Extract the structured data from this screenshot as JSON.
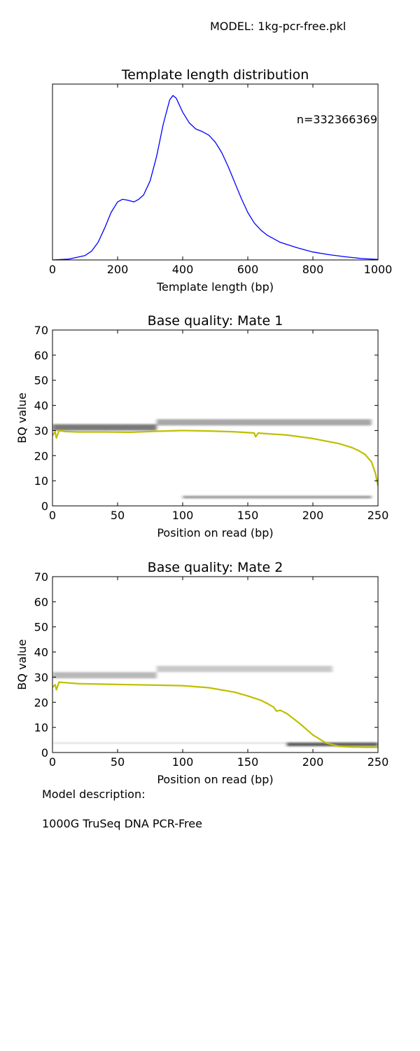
{
  "header": {
    "model_label": "MODEL: 1kg-pcr-free.pkl"
  },
  "footer": {
    "description_label": "Model description:",
    "description_text": "1000G TruSeq DNA PCR-Free"
  },
  "colors": {
    "tlen_line": "#0000ff",
    "mean_line": "#bfbf00",
    "heat": "#000000"
  },
  "chart_data": [
    {
      "type": "line",
      "title": "Template length distribution",
      "xlabel": "Template length (bp)",
      "ylabel": "",
      "annotation": "n=332366369",
      "xlim": [
        0,
        1000
      ],
      "ylim": [
        0,
        1
      ],
      "xticks": [
        0,
        200,
        400,
        600,
        800,
        1000
      ],
      "yticks": [],
      "series": [
        {
          "x": [
            0,
            50,
            100,
            120,
            140,
            160,
            180,
            200,
            215,
            230,
            250,
            265,
            280,
            300,
            320,
            340,
            360,
            370,
            380,
            400,
            420,
            440,
            460,
            480,
            500,
            520,
            540,
            560,
            580,
            600,
            620,
            640,
            660,
            700,
            750,
            800,
            850,
            900,
            950,
            1000
          ],
          "y": [
            0.0,
            0.005,
            0.025,
            0.05,
            0.1,
            0.18,
            0.27,
            0.33,
            0.345,
            0.34,
            0.33,
            0.345,
            0.37,
            0.45,
            0.59,
            0.77,
            0.91,
            0.935,
            0.92,
            0.84,
            0.78,
            0.745,
            0.73,
            0.71,
            0.67,
            0.61,
            0.53,
            0.44,
            0.35,
            0.27,
            0.21,
            0.17,
            0.14,
            0.1,
            0.07,
            0.045,
            0.03,
            0.018,
            0.008,
            0.003
          ]
        }
      ]
    },
    {
      "type": "heatmap",
      "title": "Base quality: Mate 1",
      "xlabel": "Position on read (bp)",
      "ylabel": "BQ value",
      "xlim": [
        0,
        250
      ],
      "ylim": [
        0,
        70
      ],
      "xticks": [
        0,
        50,
        100,
        150,
        200,
        250
      ],
      "yticks": [
        0,
        10,
        20,
        30,
        40,
        50,
        60,
        70
      ],
      "bands": [
        {
          "x_start": 0,
          "x_end": 80,
          "q_low": 30,
          "q_high": 32.5,
          "density": 0.75
        },
        {
          "x_start": 80,
          "x_end": 245,
          "q_low": 32,
          "q_high": 34.5,
          "density": 0.5
        },
        {
          "x_start": 100,
          "x_end": 245,
          "q_low": 3,
          "q_high": 4,
          "density": 0.6
        }
      ],
      "series": [
        {
          "x": [
            0,
            2,
            3,
            5,
            10,
            20,
            40,
            60,
            80,
            100,
            120,
            140,
            155,
            156,
            158,
            160,
            180,
            200,
            220,
            230,
            235,
            240,
            245,
            248,
            250
          ],
          "y": [
            28,
            29.5,
            27,
            30,
            29.6,
            29.4,
            29.4,
            29.3,
            29.7,
            30.0,
            29.8,
            29.5,
            29.0,
            27.5,
            29.0,
            28.9,
            28.2,
            26.8,
            24.8,
            23.2,
            22.0,
            20.5,
            17.5,
            13,
            8
          ]
        }
      ]
    },
    {
      "type": "heatmap",
      "title": "Base quality: Mate 2",
      "xlabel": "Position on read (bp)",
      "ylabel": "BQ value",
      "xlim": [
        0,
        250
      ],
      "ylim": [
        0,
        70
      ],
      "xticks": [
        0,
        50,
        100,
        150,
        200,
        250
      ],
      "yticks": [
        0,
        10,
        20,
        30,
        40,
        50,
        60,
        70
      ],
      "bands": [
        {
          "x_start": 0,
          "x_end": 80,
          "q_low": 29.5,
          "q_high": 32,
          "density": 0.4
        },
        {
          "x_start": 80,
          "x_end": 215,
          "q_low": 32,
          "q_high": 34.5,
          "density": 0.3
        },
        {
          "x_start": 0,
          "x_end": 180,
          "q_low": 3.5,
          "q_high": 4,
          "density": 0.25
        },
        {
          "x_start": 180,
          "x_end": 250,
          "q_low": 2.5,
          "q_high": 4,
          "density": 0.9
        }
      ],
      "series": [
        {
          "x": [
            0,
            2,
            3,
            5,
            10,
            20,
            40,
            60,
            80,
            100,
            120,
            140,
            150,
            160,
            165,
            170,
            172,
            175,
            180,
            190,
            200,
            210,
            220,
            230,
            240,
            250
          ],
          "y": [
            26,
            27,
            25,
            28,
            27.8,
            27.4,
            27.2,
            27.0,
            26.8,
            26.6,
            25.8,
            24.0,
            22.5,
            20.8,
            19.5,
            18.0,
            16.5,
            16.8,
            15.5,
            11.5,
            7.0,
            3.8,
            2.5,
            2.2,
            2.1,
            2.1
          ]
        }
      ]
    }
  ]
}
